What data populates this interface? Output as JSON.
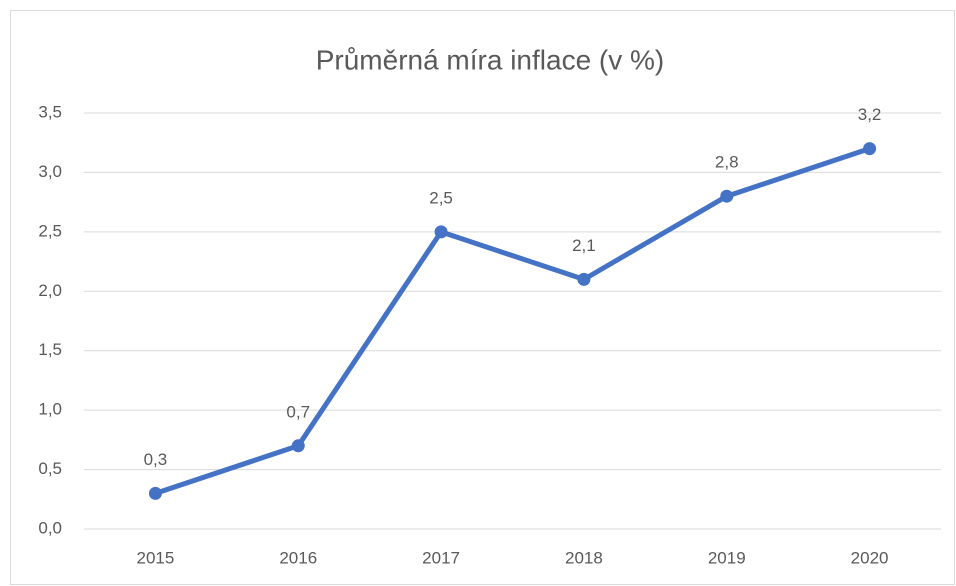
{
  "chart_data": {
    "type": "line",
    "title": "Průměrná míra inflace (v %)",
    "categories": [
      "2015",
      "2016",
      "2017",
      "2018",
      "2019",
      "2020"
    ],
    "series": [
      {
        "name": "Průměrná míra inflace",
        "color": "#4472c4",
        "values": [
          0.3,
          0.7,
          2.5,
          2.1,
          2.8,
          3.2
        ],
        "value_labels": [
          "0,3",
          "0,7",
          "2,5",
          "2,1",
          "2,8",
          "3,2"
        ]
      }
    ],
    "ylim": [
      0,
      3.5
    ],
    "yticks": [
      {
        "value": 0,
        "label": "0,0"
      },
      {
        "value": 0.5,
        "label": "0,5"
      },
      {
        "value": 1,
        "label": "1,0"
      },
      {
        "value": 1.5,
        "label": "1,5"
      },
      {
        "value": 2,
        "label": "2,0"
      },
      {
        "value": 2.5,
        "label": "2,5"
      },
      {
        "value": 3,
        "label": "3,0"
      },
      {
        "value": 3.5,
        "label": "3,5"
      }
    ],
    "grid": true
  }
}
